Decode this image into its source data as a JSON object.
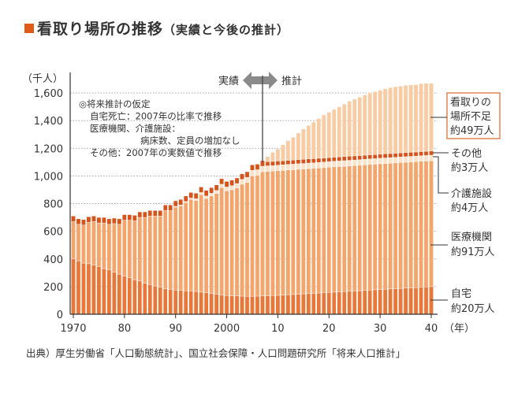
{
  "title": {
    "main": "看取り場所の推移",
    "sub": "（実績と今後の推計）"
  },
  "source": "出典）厚生労働省「人口動態統計」、国立社会保障・人口問題研究所「将来人口推計」",
  "colors": {
    "accent": "#e05a1a",
    "home": "#e8773a",
    "hospital": "#f3a56c",
    "care": "#fae3cb",
    "other": "#d6541b",
    "shortage": "#f8cba3"
  },
  "chart_data": {
    "type": "bar",
    "stacked": true,
    "title": "看取り場所の推移（実績と今後の推計）",
    "ylabel": "（千人）",
    "xlabel": "（年）",
    "ylim": [
      0,
      1600
    ],
    "yticks": [
      0,
      200,
      400,
      600,
      800,
      1000,
      1200,
      1400,
      1600
    ],
    "ytick_labels": [
      "0",
      "200",
      "400",
      "600",
      "800",
      "1,000",
      "1,200",
      "1,400",
      "1,600"
    ],
    "xticks": [
      1970,
      1980,
      1990,
      2000,
      2010,
      2020,
      2030,
      2040
    ],
    "xtick_labels": [
      "1970",
      "80",
      "90",
      "2000",
      "10",
      "20",
      "30",
      "40"
    ],
    "grid": "horizontal-dotted",
    "x_start": 1970,
    "x_end": 2040,
    "divider": {
      "year": 2007,
      "left_label": "実績",
      "right_label": "推計"
    },
    "assumptions": [
      "◎将来推計の仮定",
      "自宅死亡：2007年の比率で推移",
      "医療機関、介護施設：",
      "病床数、定員の増加なし",
      "その他：2007年の実数値で推移"
    ],
    "series": [
      {
        "name": "自宅",
        "label": "自宅",
        "value_label": "約20万人",
        "values": [
          400,
          385,
          370,
          365,
          355,
          345,
          330,
          320,
          305,
          290,
          275,
          265,
          250,
          240,
          225,
          215,
          205,
          195,
          185,
          180,
          175,
          172,
          170,
          168,
          165,
          160,
          155,
          150,
          145,
          140,
          135,
          133,
          132,
          131,
          130,
          130,
          131,
          132,
          133,
          135,
          137,
          139,
          141,
          143,
          145,
          147,
          149,
          151,
          153,
          155,
          158,
          160,
          162,
          164,
          166,
          168,
          170,
          172,
          175,
          177,
          179,
          181,
          183,
          185,
          187,
          189,
          191,
          193,
          196,
          198,
          200
        ]
      },
      {
        "name": "医療機関",
        "label": "医療機関",
        "value_label": "約91万人",
        "values": [
          270,
          265,
          275,
          300,
          315,
          315,
          330,
          330,
          350,
          360,
          405,
          415,
          425,
          460,
          475,
          495,
          505,
          515,
          565,
          570,
          600,
          612,
          637,
          662,
          658,
          705,
          682,
          705,
          728,
          775,
          757,
          767,
          781,
          809,
          823,
          870,
          874,
          898,
          900,
          900,
          901,
          901,
          902,
          902,
          903,
          903,
          904,
          904,
          905,
          905,
          905,
          906,
          906,
          906,
          907,
          907,
          907,
          908,
          908,
          908,
          909,
          909,
          909,
          909,
          910,
          910,
          910,
          910,
          910,
          910,
          910
        ]
      },
      {
        "name": "介護施設",
        "label": "介護施設",
        "value_label": "約4万人",
        "values": [
          0,
          0,
          0,
          0,
          0,
          0,
          0,
          0,
          0,
          0,
          0,
          0,
          0,
          0,
          0,
          0,
          0,
          0,
          0,
          0,
          5,
          6,
          8,
          10,
          12,
          15,
          18,
          20,
          22,
          25,
          28,
          30,
          32,
          35,
          37,
          40,
          40,
          40,
          40,
          40,
          40,
          40,
          40,
          40,
          40,
          40,
          40,
          40,
          40,
          40,
          40,
          40,
          40,
          40,
          40,
          40,
          40,
          40,
          40,
          40,
          40,
          40,
          40,
          40,
          40,
          40,
          40,
          40,
          40,
          40,
          40
        ]
      },
      {
        "name": "その他",
        "label": "その他",
        "value_label": "約3万人",
        "values": [
          40,
          40,
          40,
          40,
          40,
          40,
          40,
          40,
          40,
          40,
          40,
          40,
          40,
          40,
          40,
          40,
          40,
          40,
          40,
          40,
          40,
          40,
          40,
          40,
          40,
          40,
          40,
          40,
          40,
          40,
          40,
          40,
          40,
          40,
          40,
          40,
          40,
          40,
          30,
          30,
          30,
          30,
          30,
          30,
          30,
          30,
          30,
          30,
          30,
          30,
          30,
          30,
          30,
          30,
          30,
          30,
          30,
          30,
          30,
          30,
          30,
          30,
          30,
          30,
          30,
          30,
          30,
          30,
          30,
          30,
          30
        ]
      },
      {
        "name": "看取りの場所不足",
        "label": "看取りの場所不足",
        "value_label": "約49万人",
        "values": [
          0,
          0,
          0,
          0,
          0,
          0,
          0,
          0,
          0,
          0,
          0,
          0,
          0,
          0,
          0,
          0,
          0,
          0,
          0,
          0,
          0,
          0,
          0,
          0,
          0,
          0,
          0,
          0,
          0,
          0,
          0,
          0,
          0,
          0,
          0,
          0,
          0,
          0,
          37,
          65,
          87,
          115,
          142,
          165,
          192,
          220,
          242,
          265,
          287,
          310,
          327,
          344,
          362,
          380,
          397,
          410,
          423,
          435,
          447,
          455,
          462,
          470,
          476,
          481,
          483,
          486,
          487,
          487,
          492,
          492,
          490
        ]
      }
    ],
    "annotation_labels": {
      "shortage": [
        "看取りの",
        "場所不足",
        "約49万人"
      ],
      "other": [
        "その他",
        "約3万人"
      ],
      "care": [
        "介護施設",
        "約4万人"
      ],
      "hospital": [
        "医療機関",
        "約91万人"
      ],
      "home": [
        "自宅",
        "約20万人"
      ]
    }
  }
}
